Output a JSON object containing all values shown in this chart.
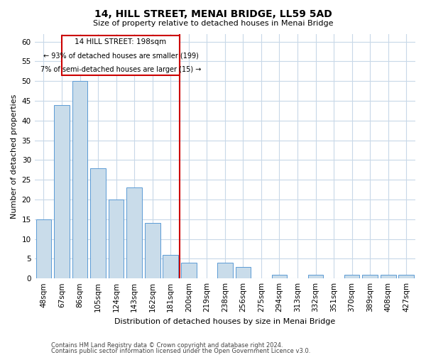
{
  "title": "14, HILL STREET, MENAI BRIDGE, LL59 5AD",
  "subtitle": "Size of property relative to detached houses in Menai Bridge",
  "xlabel": "Distribution of detached houses by size in Menai Bridge",
  "ylabel": "Number of detached properties",
  "categories": [
    "48sqm",
    "67sqm",
    "86sqm",
    "105sqm",
    "124sqm",
    "143sqm",
    "162sqm",
    "181sqm",
    "200sqm",
    "219sqm",
    "238sqm",
    "256sqm",
    "275sqm",
    "294sqm",
    "313sqm",
    "332sqm",
    "351sqm",
    "370sqm",
    "389sqm",
    "408sqm",
    "427sqm"
  ],
  "values": [
    15,
    44,
    50,
    28,
    20,
    23,
    14,
    6,
    4,
    0,
    4,
    3,
    0,
    1,
    0,
    1,
    0,
    1,
    1,
    1,
    1
  ],
  "bar_color": "#c9dcea",
  "bar_edge_color": "#5b9bd5",
  "highlight_index": 8,
  "highlight_line_color": "#cc0000",
  "highlight_box_color": "#cc0000",
  "ylim": [
    0,
    62
  ],
  "yticks": [
    0,
    5,
    10,
    15,
    20,
    25,
    30,
    35,
    40,
    45,
    50,
    55,
    60
  ],
  "annotation_line1": "14 HILL STREET: 198sqm",
  "annotation_line2": "← 93% of detached houses are smaller (199)",
  "annotation_line3": "7% of semi-detached houses are larger (15) →",
  "footer1": "Contains HM Land Registry data © Crown copyright and database right 2024.",
  "footer2": "Contains public sector information licensed under the Open Government Licence v3.0.",
  "background_color": "#ffffff",
  "grid_color": "#c8d8e8",
  "title_fontsize": 10,
  "subtitle_fontsize": 8,
  "axis_label_fontsize": 8,
  "tick_fontsize": 7.5,
  "footer_fontsize": 6
}
